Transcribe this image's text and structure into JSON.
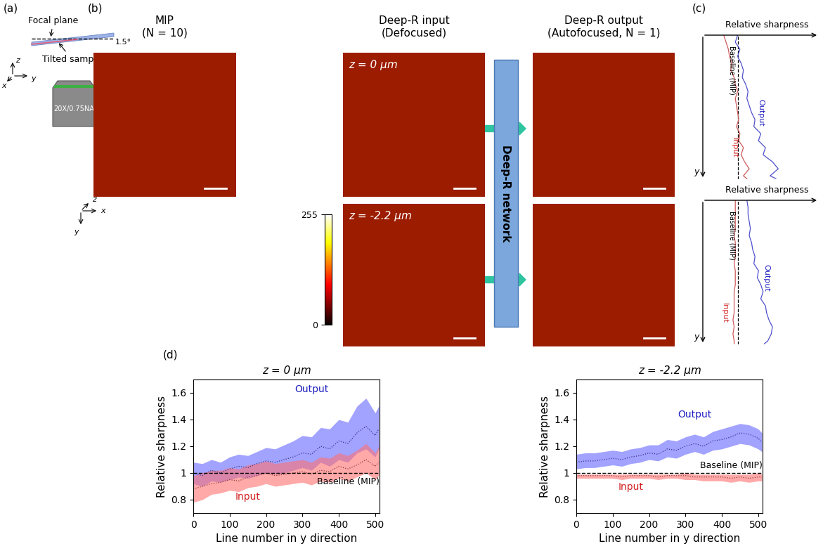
{
  "panels": {
    "a": {
      "label": "(a)",
      "focal_plane": "Focal plane",
      "sample": "Tilted sample",
      "angle": "1.5°",
      "objective": "20X/0.75NA",
      "axes": [
        "z",
        "y",
        "x"
      ]
    },
    "b": {
      "label": "(b)",
      "columns": [
        "MIP\n(N = 10)",
        "Deep-R input\n(Defocused)",
        "Deep-R output\n(Autofocused, N = 1)"
      ],
      "rows": [
        "z = 0 μm",
        "z = -2.2 μm"
      ],
      "network": "Deep-R network",
      "axes": [
        "z",
        "x",
        "y"
      ],
      "colorbar": {
        "range": [
          0,
          255
        ],
        "ticks": [
          0,
          255
        ]
      }
    },
    "c": {
      "label": "(c)",
      "xlabel": "Relative sharpness",
      "ylabel": "y"
    },
    "d": {
      "label": "(d)"
    }
  },
  "chart_data": [
    {
      "type": "line",
      "title": "z = 0 μm",
      "x_label": "Line number in y direction",
      "y_label": "Relative sharpness",
      "x": [
        0,
        25,
        50,
        75,
        100,
        125,
        150,
        175,
        200,
        225,
        250,
        275,
        300,
        325,
        350,
        375,
        400,
        425,
        450,
        475,
        500,
        510
      ],
      "series": [
        {
          "name": "Output",
          "color": "#6464ff",
          "line_style": "dotted",
          "values": [
            1.0,
            0.98,
            1.02,
            1.0,
            1.03,
            1.05,
            1.04,
            1.07,
            1.09,
            1.08,
            1.1,
            1.12,
            1.15,
            1.14,
            1.2,
            1.18,
            1.24,
            1.22,
            1.3,
            1.35,
            1.28,
            1.33
          ],
          "lower": [
            0.92,
            0.9,
            0.94,
            0.93,
            0.95,
            0.97,
            0.96,
            0.98,
            1.0,
            0.99,
            1.0,
            1.02,
            1.04,
            1.02,
            1.08,
            1.05,
            1.1,
            1.08,
            1.15,
            1.18,
            1.12,
            1.18
          ],
          "upper": [
            1.08,
            1.07,
            1.1,
            1.08,
            1.12,
            1.14,
            1.13,
            1.16,
            1.19,
            1.18,
            1.21,
            1.24,
            1.28,
            1.27,
            1.34,
            1.33,
            1.4,
            1.38,
            1.5,
            1.56,
            1.45,
            1.5
          ]
        },
        {
          "name": "Input",
          "color": "#ff7070",
          "line_style": "dotted",
          "values": [
            0.88,
            0.9,
            0.92,
            0.93,
            0.95,
            0.94,
            0.97,
            0.98,
            1.0,
            0.98,
            0.99,
            1.0,
            1.01,
            0.99,
            1.02,
            1.01,
            1.05,
            1.03,
            1.06,
            1.1,
            1.05,
            1.08
          ],
          "lower": [
            0.78,
            0.8,
            0.84,
            0.85,
            0.87,
            0.86,
            0.89,
            0.9,
            0.92,
            0.9,
            0.91,
            0.92,
            0.93,
            0.91,
            0.94,
            0.93,
            0.96,
            0.94,
            0.97,
            1.0,
            0.95,
            0.98
          ],
          "upper": [
            0.98,
            1.0,
            1.02,
            1.02,
            1.04,
            1.03,
            1.06,
            1.07,
            1.09,
            1.07,
            1.08,
            1.09,
            1.1,
            1.08,
            1.12,
            1.11,
            1.15,
            1.13,
            1.17,
            1.22,
            1.15,
            1.2
          ]
        }
      ],
      "baseline": {
        "name": "Baseline (MIP)",
        "value": 1,
        "color": "#000000",
        "line_style": "dashed"
      },
      "xlim": [
        0,
        512
      ],
      "ylim": [
        0.7,
        1.7
      ],
      "xticks": [
        0,
        100,
        200,
        300,
        400,
        500
      ],
      "yticks": [
        0.8,
        1,
        1.2,
        1.4,
        1.6
      ]
    },
    {
      "type": "line",
      "title": "z = -2.2 μm",
      "x_label": "Line number in y direction",
      "y_label": "Relative sharpness",
      "x": [
        0,
        25,
        50,
        75,
        100,
        125,
        150,
        175,
        200,
        225,
        250,
        275,
        300,
        325,
        350,
        375,
        400,
        425,
        450,
        475,
        500,
        510
      ],
      "series": [
        {
          "name": "Output",
          "color": "#6464ff",
          "line_style": "dotted",
          "values": [
            1.08,
            1.09,
            1.09,
            1.1,
            1.11,
            1.1,
            1.12,
            1.13,
            1.15,
            1.14,
            1.18,
            1.17,
            1.2,
            1.22,
            1.2,
            1.24,
            1.25,
            1.27,
            1.3,
            1.29,
            1.26,
            1.23
          ],
          "lower": [
            1.03,
            1.04,
            1.04,
            1.05,
            1.06,
            1.05,
            1.07,
            1.08,
            1.1,
            1.09,
            1.12,
            1.11,
            1.14,
            1.16,
            1.14,
            1.17,
            1.18,
            1.2,
            1.22,
            1.21,
            1.18,
            1.16
          ],
          "upper": [
            1.14,
            1.15,
            1.15,
            1.16,
            1.17,
            1.16,
            1.18,
            1.19,
            1.21,
            1.21,
            1.25,
            1.24,
            1.27,
            1.29,
            1.27,
            1.31,
            1.33,
            1.35,
            1.37,
            1.36,
            1.33,
            1.3
          ]
        },
        {
          "name": "Input",
          "color": "#ff7070",
          "line_style": "dotted",
          "values": [
            0.98,
            0.98,
            0.98,
            0.98,
            0.98,
            0.97,
            0.98,
            0.98,
            0.98,
            0.97,
            0.98,
            0.98,
            0.98,
            0.97,
            0.97,
            0.97,
            0.97,
            0.96,
            0.97,
            0.96,
            0.97,
            0.97
          ],
          "lower": [
            0.96,
            0.96,
            0.96,
            0.96,
            0.96,
            0.95,
            0.96,
            0.96,
            0.96,
            0.95,
            0.96,
            0.96,
            0.95,
            0.95,
            0.94,
            0.94,
            0.94,
            0.93,
            0.94,
            0.93,
            0.94,
            0.94
          ],
          "upper": [
            0.99,
            0.99,
            0.99,
            0.99,
            0.99,
            0.99,
            0.99,
            0.99,
            0.99,
            0.99,
            0.99,
            0.99,
            1.0,
            0.99,
            0.99,
            0.99,
            0.99,
            0.99,
            0.99,
            0.99,
            1.0,
            0.99
          ]
        }
      ],
      "baseline": {
        "name": "Baseline (MIP)",
        "value": 1,
        "color": "#000000",
        "line_style": "dashed"
      },
      "xlim": [
        0,
        512
      ],
      "ylim": [
        0.7,
        1.7
      ],
      "xticks": [
        0,
        100,
        200,
        300,
        400,
        500
      ],
      "yticks": [
        0.8,
        1,
        1.2,
        1.4,
        1.6
      ]
    }
  ]
}
